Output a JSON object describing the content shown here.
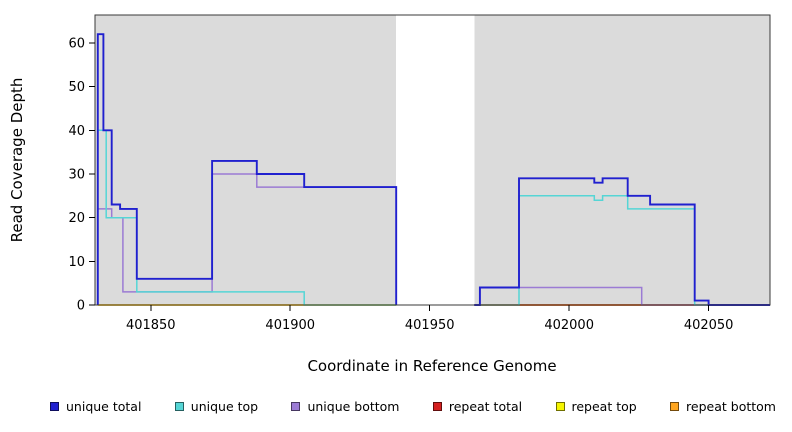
{
  "chart_data": {
    "type": "line",
    "title": "",
    "xlabel": "Coordinate in Reference Genome",
    "ylabel": "Read Coverage Depth",
    "xlim": [
      401830,
      402072
    ],
    "ylim": [
      0,
      66.4
    ],
    "x_ticks": [
      401850,
      401900,
      401950,
      402000,
      402050
    ],
    "y_ticks": [
      0,
      10,
      20,
      30,
      40,
      50,
      60
    ],
    "grid": false,
    "legend_position": "bottom",
    "plot_bg": "#DBDBDB",
    "gap_region": {
      "x_start": 401938,
      "x_end": 401966
    },
    "series": [
      {
        "name": "repeat top",
        "color": "#F5F500",
        "segments": [
          [
            [
              401831,
              0
            ],
            [
              401938,
              0
            ]
          ],
          [
            [
              401966,
              0
            ],
            [
              402072,
              0
            ]
          ]
        ]
      },
      {
        "name": "repeat bottom",
        "color": "#FFA51E",
        "segments": [
          [
            [
              401831,
              0
            ],
            [
              401938,
              0
            ]
          ],
          [
            [
              401966,
              0
            ],
            [
              402072,
              0
            ]
          ]
        ]
      },
      {
        "name": "repeat total",
        "color": "#D42020",
        "segments": [
          [
            [
              401966,
              0
            ],
            [
              402072,
              0
            ]
          ]
        ]
      },
      {
        "name": "unique bottom",
        "color": "#9B7BD4",
        "segments": [
          [
            [
              401831,
              0
            ],
            [
              401831,
              22
            ],
            [
              401836,
              22
            ],
            [
              401836,
              20
            ],
            [
              401840,
              20
            ],
            [
              401840,
              3
            ],
            [
              401872,
              3
            ],
            [
              401872,
              30
            ],
            [
              401888,
              30
            ],
            [
              401888,
              27
            ],
            [
              401938,
              27
            ],
            [
              401938,
              0
            ]
          ],
          [
            [
              401966,
              0
            ],
            [
              401968,
              0
            ],
            [
              401968,
              4
            ],
            [
              402026,
              4
            ],
            [
              402026,
              0
            ],
            [
              402072,
              0
            ]
          ]
        ]
      },
      {
        "name": "unique top",
        "color": "#55D5D5",
        "segments": [
          [
            [
              401831,
              0
            ],
            [
              401831,
              40
            ],
            [
              401834,
              40
            ],
            [
              401834,
              20
            ],
            [
              401845,
              20
            ],
            [
              401845,
              3
            ],
            [
              401905,
              3
            ],
            [
              401905,
              0
            ],
            [
              401938,
              0
            ]
          ],
          [
            [
              401966,
              0
            ],
            [
              401982,
              0
            ],
            [
              401982,
              25
            ],
            [
              402009,
              25
            ],
            [
              402009,
              24
            ],
            [
              402012,
              24
            ],
            [
              402012,
              25
            ],
            [
              402021,
              25
            ],
            [
              402021,
              22
            ],
            [
              402045,
              22
            ],
            [
              402045,
              0
            ],
            [
              402072,
              0
            ]
          ]
        ]
      },
      {
        "name": "unique total",
        "color": "#2020CF",
        "segments": [
          [
            [
              401831,
              0
            ],
            [
              401831,
              62
            ],
            [
              401833,
              62
            ],
            [
              401833,
              40
            ],
            [
              401836,
              40
            ],
            [
              401836,
              23
            ],
            [
              401839,
              23
            ],
            [
              401839,
              22
            ],
            [
              401845,
              22
            ],
            [
              401845,
              6
            ],
            [
              401872,
              6
            ],
            [
              401872,
              33
            ],
            [
              401888,
              33
            ],
            [
              401888,
              30
            ],
            [
              401905,
              30
            ],
            [
              401905,
              27
            ],
            [
              401938,
              27
            ],
            [
              401938,
              0
            ]
          ],
          [
            [
              401966,
              0
            ],
            [
              401968,
              0
            ],
            [
              401968,
              4
            ],
            [
              401982,
              4
            ],
            [
              401982,
              29
            ],
            [
              402009,
              29
            ],
            [
              402009,
              28
            ],
            [
              402012,
              28
            ],
            [
              402012,
              29
            ],
            [
              402021,
              29
            ],
            [
              402021,
              25
            ],
            [
              402029,
              25
            ],
            [
              402029,
              23
            ],
            [
              402045,
              23
            ],
            [
              402045,
              1
            ],
            [
              402050,
              1
            ],
            [
              402050,
              0
            ],
            [
              402072,
              0
            ]
          ]
        ]
      }
    ],
    "legend": [
      {
        "label": "unique total",
        "color": "#2020CF"
      },
      {
        "label": "unique top",
        "color": "#55D5D5"
      },
      {
        "label": "unique bottom",
        "color": "#9B7BD4"
      },
      {
        "label": "repeat total",
        "color": "#D42020"
      },
      {
        "label": "repeat top",
        "color": "#F5F500"
      },
      {
        "label": "repeat bottom",
        "color": "#FFA51E"
      }
    ]
  }
}
